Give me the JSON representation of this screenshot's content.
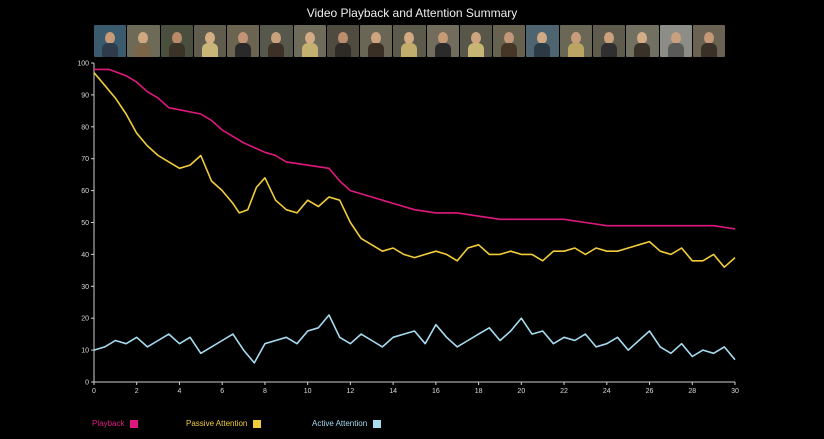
{
  "title": "Video Playback and Attention Summary",
  "thumbnails": [
    {
      "bg": "#3a5a6e",
      "face": "#c99a78",
      "body": "#2d3b4a"
    },
    {
      "bg": "#6d6a58",
      "face": "#d0a880",
      "body": "#7a6548"
    },
    {
      "bg": "#4a4e3c",
      "face": "#b98a6a",
      "body": "#3b3328"
    },
    {
      "bg": "#5f5b4d",
      "face": "#d6ae84",
      "body": "#c9b77a"
    },
    {
      "bg": "#6b6451",
      "face": "#c39476",
      "body": "#2a2a2a"
    },
    {
      "bg": "#55584a",
      "face": "#caa17d",
      "body": "#3c3027"
    },
    {
      "bg": "#6e6b5a",
      "face": "#d3ab86",
      "body": "#c4b06f"
    },
    {
      "bg": "#4f4c3f",
      "face": "#bd8e6e",
      "body": "#2e2a26"
    },
    {
      "bg": "#6a6656",
      "face": "#cfa47f",
      "body": "#3a2f25"
    },
    {
      "bg": "#5c5a4b",
      "face": "#d2aa84",
      "body": "#c2ad6c"
    },
    {
      "bg": "#716c5b",
      "face": "#c79a78",
      "body": "#2b2b2b"
    },
    {
      "bg": "#585648",
      "face": "#cda47f",
      "body": "#c8b574"
    },
    {
      "bg": "#66624f",
      "face": "#c3977a",
      "body": "#453628"
    },
    {
      "bg": "#4e6470",
      "face": "#d1a985",
      "body": "#2c3a46"
    },
    {
      "bg": "#6b6757",
      "face": "#c89d7b",
      "body": "#bba565"
    },
    {
      "bg": "#5e5b4c",
      "face": "#cca27e",
      "body": "#2f2f2f"
    },
    {
      "bg": "#727060",
      "face": "#d4ac87",
      "body": "#3a3128"
    },
    {
      "bg": "#8d8d88",
      "face": "#c8a07e",
      "body": "#5a5a58"
    },
    {
      "bg": "#6a6252",
      "face": "#c49878",
      "body": "#3b3026"
    }
  ],
  "chart_data": {
    "type": "line",
    "title": "Video Playback and Attention Summary",
    "xlim": [
      0,
      30
    ],
    "ylim": [
      0,
      100
    ],
    "xticks": [
      "0",
      "2",
      "4",
      "6",
      "8",
      "10",
      "12",
      "14",
      "16",
      "18",
      "20",
      "22",
      "24",
      "26",
      "28",
      "30"
    ],
    "yticks": [
      "0",
      "10",
      "20",
      "30",
      "40",
      "50",
      "60",
      "70",
      "80",
      "90",
      "100"
    ],
    "grid": false,
    "legend_position": "bottom",
    "series": [
      {
        "name": "Playback",
        "color": "#e0187e",
        "x": [
          0,
          0.7,
          1.5,
          2,
          2.5,
          3,
          3.5,
          5,
          5.5,
          6,
          6.5,
          7,
          8,
          8.5,
          9,
          11,
          11.5,
          12,
          13,
          14,
          15,
          16,
          17,
          19,
          20,
          22,
          23,
          24,
          26,
          28,
          29,
          30
        ],
        "y": [
          98,
          98,
          96,
          94,
          91,
          89,
          86,
          84,
          82,
          79,
          77,
          75,
          72,
          71,
          69,
          67,
          63,
          60,
          58,
          56,
          54,
          53,
          53,
          51,
          51,
          51,
          50,
          49,
          49,
          49,
          49,
          48
        ]
      },
      {
        "name": "Passive Attention",
        "color": "#f2cd3b",
        "x": [
          0,
          0.5,
          1,
          1.5,
          2,
          2.5,
          3,
          3.5,
          4,
          4.5,
          5,
          5.5,
          6,
          6.5,
          6.8,
          7.2,
          7.6,
          8,
          8.5,
          9,
          9.5,
          10,
          10.5,
          11,
          11.5,
          12,
          12.5,
          13,
          13.5,
          14,
          14.5,
          15,
          15.5,
          16,
          16.5,
          17,
          17.5,
          18,
          18.5,
          19,
          19.5,
          20,
          20.5,
          21,
          21.5,
          22,
          22.5,
          23,
          23.5,
          24,
          24.5,
          25,
          25.5,
          26,
          26.5,
          27,
          27.5,
          28,
          28.5,
          29,
          29.5,
          30
        ],
        "y": [
          97,
          93,
          89,
          84,
          78,
          74,
          71,
          69,
          67,
          68,
          71,
          63,
          60,
          56,
          53,
          54,
          61,
          64,
          57,
          54,
          53,
          57,
          55,
          58,
          57,
          50,
          45,
          43,
          41,
          42,
          40,
          39,
          40,
          41,
          40,
          38,
          42,
          43,
          40,
          40,
          41,
          40,
          40,
          38,
          41,
          41,
          42,
          40,
          42,
          41,
          41,
          42,
          43,
          44,
          41,
          40,
          42,
          38,
          38,
          40,
          36,
          39
        ]
      },
      {
        "name": "Active Attention",
        "color": "#a7dbf0",
        "x": [
          0,
          0.5,
          1,
          1.5,
          2,
          2.5,
          3,
          3.5,
          4,
          4.5,
          5,
          5.5,
          6,
          6.5,
          7,
          7.5,
          8,
          8.5,
          9,
          9.5,
          10,
          10.5,
          11,
          11.5,
          12,
          12.5,
          13,
          13.5,
          14,
          14.5,
          15,
          15.5,
          16,
          16.5,
          17,
          17.5,
          18,
          18.5,
          19,
          19.5,
          20,
          20.5,
          21,
          21.5,
          22,
          22.5,
          23,
          23.5,
          24,
          24.5,
          25,
          25.5,
          26,
          26.5,
          27,
          27.5,
          28,
          28.5,
          29,
          29.5,
          30
        ],
        "y": [
          10,
          11,
          13,
          12,
          14,
          11,
          13,
          15,
          12,
          14,
          9,
          11,
          13,
          15,
          10,
          6,
          12,
          13,
          14,
          12,
          16,
          17,
          21,
          14,
          12,
          15,
          13,
          11,
          14,
          15,
          16,
          12,
          18,
          14,
          11,
          13,
          15,
          17,
          13,
          16,
          20,
          15,
          16,
          12,
          14,
          13,
          15,
          11,
          12,
          14,
          10,
          13,
          16,
          11,
          9,
          12,
          8,
          10,
          9,
          11,
          7
        ]
      }
    ]
  },
  "legend": [
    {
      "label": "Playback",
      "color": "#e0187e"
    },
    {
      "label": "Passive Attention",
      "color": "#f2cd3b"
    },
    {
      "label": "Active Attention",
      "color": "#a7dbf0"
    }
  ]
}
